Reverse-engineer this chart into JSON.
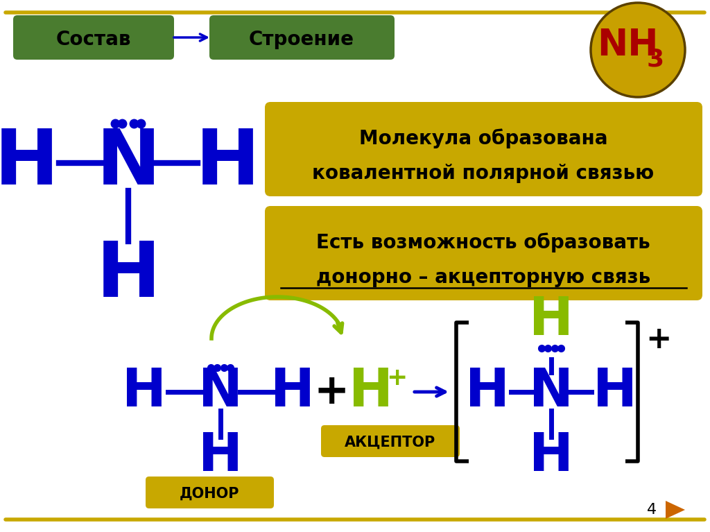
{
  "bg_color": "#ffffff",
  "border_color": "#c8a800",
  "green_box_color": "#4a7c2f",
  "gold_box_color": "#c8a800",
  "blue_color": "#0000cc",
  "green_h_color": "#88bb00",
  "red_color": "#aa0000",
  "dark_gold": "#c8a000",
  "dark_gold_edge": "#5a4000",
  "black": "#000000",
  "box1_text": "Состав",
  "box2_text": "Строение",
  "text1_line1": "Молекула образована",
  "text1_line2": "ковалентной полярной связью",
  "text2_line1": "Есть возможность образовать",
  "text2_line2": "донорно – акцепторную связь",
  "donor_text": "ДОНОР",
  "acceptor_text": "АКЦЕПТОР",
  "page_num": "4"
}
